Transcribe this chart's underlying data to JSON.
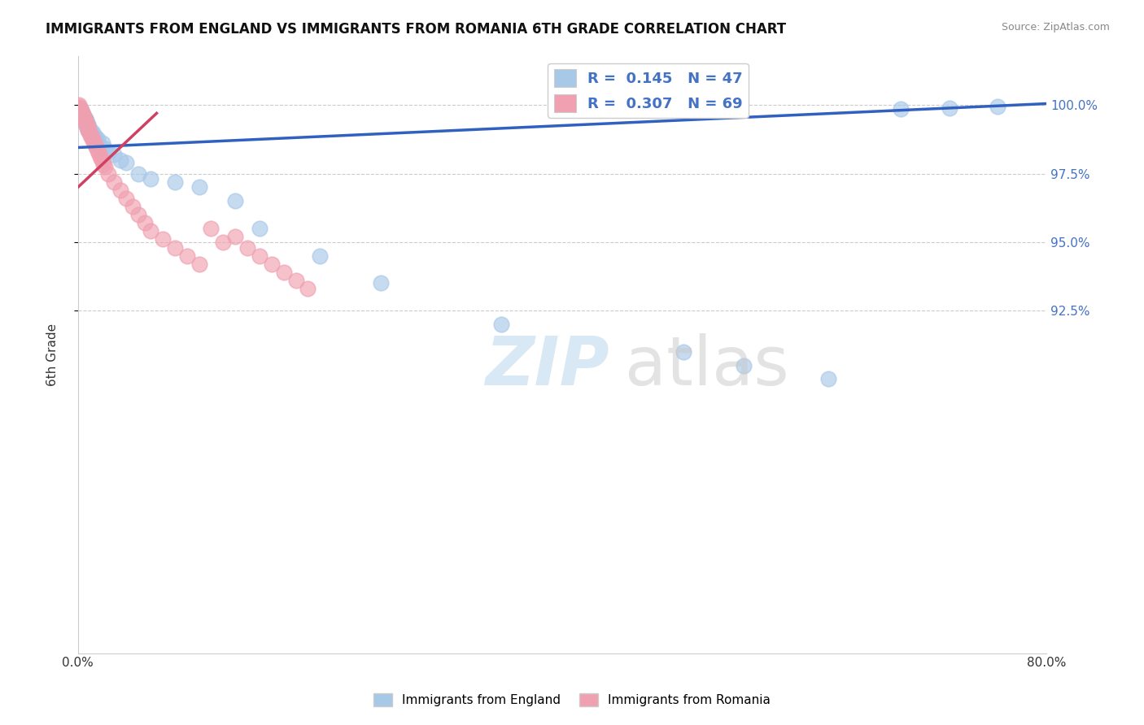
{
  "title": "IMMIGRANTS FROM ENGLAND VS IMMIGRANTS FROM ROMANIA 6TH GRADE CORRELATION CHART",
  "source": "Source: ZipAtlas.com",
  "ylabel": "6th Grade",
  "xlim": [
    0.0,
    80.0
  ],
  "ylim": [
    80.0,
    101.8
  ],
  "ytick_vals": [
    92.5,
    95.0,
    97.5,
    100.0
  ],
  "ytick_labels": [
    "92.5%",
    "95.0%",
    "97.5%",
    "100.0%"
  ],
  "legend_england": "R =  0.145   N = 47",
  "legend_romania": "R =  0.307   N = 69",
  "england_color": "#a8c8e8",
  "romania_color": "#f0a0b0",
  "england_line_color": "#3060c0",
  "romania_line_color": "#d04060",
  "background_color": "#ffffff",
  "eng_line_y0": 98.45,
  "eng_line_y1": 100.05,
  "rom_line_x0": 0.0,
  "rom_line_y0": 97.0,
  "rom_line_x1": 6.5,
  "rom_line_y1": 99.7,
  "eng_x": [
    0.1,
    0.15,
    0.2,
    0.25,
    0.3,
    0.35,
    0.4,
    0.45,
    0.5,
    0.55,
    0.6,
    0.65,
    0.7,
    0.75,
    0.8,
    0.85,
    0.9,
    0.95,
    1.0,
    1.1,
    1.2,
    1.3,
    1.4,
    1.5,
    1.6,
    1.8,
    2.0,
    2.2,
    2.5,
    3.0,
    3.5,
    4.0,
    5.0,
    6.0,
    8.0,
    10.0,
    13.0,
    15.0,
    20.0,
    25.0,
    35.0,
    50.0,
    55.0,
    62.0,
    68.0,
    72.0,
    76.0
  ],
  "eng_y": [
    99.9,
    99.8,
    99.85,
    99.7,
    99.75,
    99.6,
    99.65,
    99.5,
    99.6,
    99.4,
    99.5,
    99.3,
    99.45,
    99.2,
    99.3,
    99.1,
    99.2,
    99.0,
    99.1,
    98.9,
    99.0,
    98.8,
    98.85,
    98.7,
    98.75,
    98.5,
    98.6,
    98.4,
    98.3,
    98.2,
    98.0,
    97.9,
    97.5,
    97.3,
    97.2,
    97.0,
    96.5,
    95.5,
    94.5,
    93.5,
    92.0,
    91.0,
    90.5,
    90.0,
    99.85,
    99.9,
    99.95
  ],
  "rom_x": [
    0.05,
    0.1,
    0.12,
    0.15,
    0.18,
    0.2,
    0.22,
    0.25,
    0.28,
    0.3,
    0.32,
    0.35,
    0.38,
    0.4,
    0.42,
    0.45,
    0.48,
    0.5,
    0.52,
    0.55,
    0.58,
    0.6,
    0.62,
    0.65,
    0.68,
    0.7,
    0.72,
    0.75,
    0.78,
    0.8,
    0.85,
    0.9,
    0.95,
    1.0,
    1.05,
    1.1,
    1.15,
    1.2,
    1.3,
    1.4,
    1.5,
    1.6,
    1.7,
    1.8,
    1.9,
    2.0,
    2.1,
    2.2,
    2.5,
    3.0,
    3.5,
    4.0,
    4.5,
    5.0,
    5.5,
    6.0,
    7.0,
    8.0,
    9.0,
    10.0,
    11.0,
    12.0,
    13.0,
    14.0,
    15.0,
    16.0,
    17.0,
    18.0,
    19.0
  ],
  "rom_y": [
    100.0,
    99.95,
    99.9,
    99.9,
    99.85,
    99.85,
    99.8,
    99.8,
    99.75,
    99.75,
    99.7,
    99.7,
    99.65,
    99.65,
    99.6,
    99.6,
    99.55,
    99.5,
    99.5,
    99.45,
    99.45,
    99.4,
    99.4,
    99.35,
    99.35,
    99.3,
    99.3,
    99.25,
    99.2,
    99.15,
    99.1,
    99.05,
    99.0,
    98.95,
    98.9,
    98.85,
    98.8,
    98.75,
    98.65,
    98.55,
    98.45,
    98.35,
    98.25,
    98.15,
    98.05,
    97.95,
    97.85,
    97.75,
    97.5,
    97.2,
    96.9,
    96.6,
    96.3,
    96.0,
    95.7,
    95.4,
    95.1,
    94.8,
    94.5,
    94.2,
    95.5,
    95.0,
    95.2,
    94.8,
    94.5,
    94.2,
    93.9,
    93.6,
    93.3
  ]
}
